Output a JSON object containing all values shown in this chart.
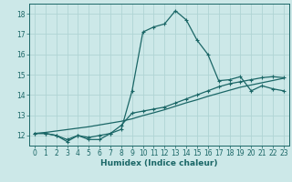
{
  "title": "",
  "xlabel": "Humidex (Indice chaleur)",
  "ylabel": "",
  "bg_color": "#cce8e8",
  "grid_color": "#b0d4d4",
  "line_color": "#1a6666",
  "xlim": [
    -0.5,
    23.5
  ],
  "ylim": [
    11.5,
    18.5
  ],
  "yticks": [
    12,
    13,
    14,
    15,
    16,
    17,
    18
  ],
  "xticks": [
    0,
    1,
    2,
    3,
    4,
    5,
    6,
    7,
    8,
    9,
    10,
    11,
    12,
    13,
    14,
    15,
    16,
    17,
    18,
    19,
    20,
    21,
    22,
    23
  ],
  "curve1_x": [
    0,
    1,
    2,
    3,
    4,
    5,
    6,
    7,
    8,
    9,
    10,
    11,
    12,
    13,
    14,
    15,
    16,
    17,
    18,
    19,
    20,
    21,
    22,
    23
  ],
  "curve1_y": [
    12.1,
    12.1,
    12.0,
    11.7,
    12.0,
    11.8,
    11.8,
    12.1,
    12.3,
    14.2,
    17.1,
    17.35,
    17.5,
    18.15,
    17.7,
    16.7,
    16.0,
    14.7,
    14.75,
    14.9,
    14.2,
    14.45,
    14.3,
    14.2
  ],
  "curve2_x": [
    0,
    1,
    2,
    3,
    4,
    5,
    6,
    7,
    8,
    9,
    10,
    11,
    12,
    13,
    14,
    15,
    16,
    17,
    18,
    19,
    20,
    21,
    22,
    23
  ],
  "curve2_y": [
    12.1,
    12.1,
    12.0,
    11.8,
    12.0,
    11.9,
    12.0,
    12.1,
    12.5,
    13.1,
    13.2,
    13.3,
    13.4,
    13.6,
    13.8,
    14.0,
    14.2,
    14.4,
    14.55,
    14.65,
    14.75,
    14.85,
    14.9,
    14.85
  ],
  "curve3_x": [
    0,
    1,
    2,
    3,
    4,
    5,
    6,
    7,
    8,
    9,
    10,
    11,
    12,
    13,
    14,
    15,
    16,
    17,
    18,
    19,
    20,
    21,
    22,
    23
  ],
  "curve3_y": [
    12.1,
    12.15,
    12.22,
    12.29,
    12.36,
    12.43,
    12.52,
    12.61,
    12.7,
    12.82,
    12.98,
    13.12,
    13.27,
    13.44,
    13.61,
    13.76,
    13.93,
    14.08,
    14.23,
    14.38,
    14.49,
    14.6,
    14.71,
    14.82
  ]
}
